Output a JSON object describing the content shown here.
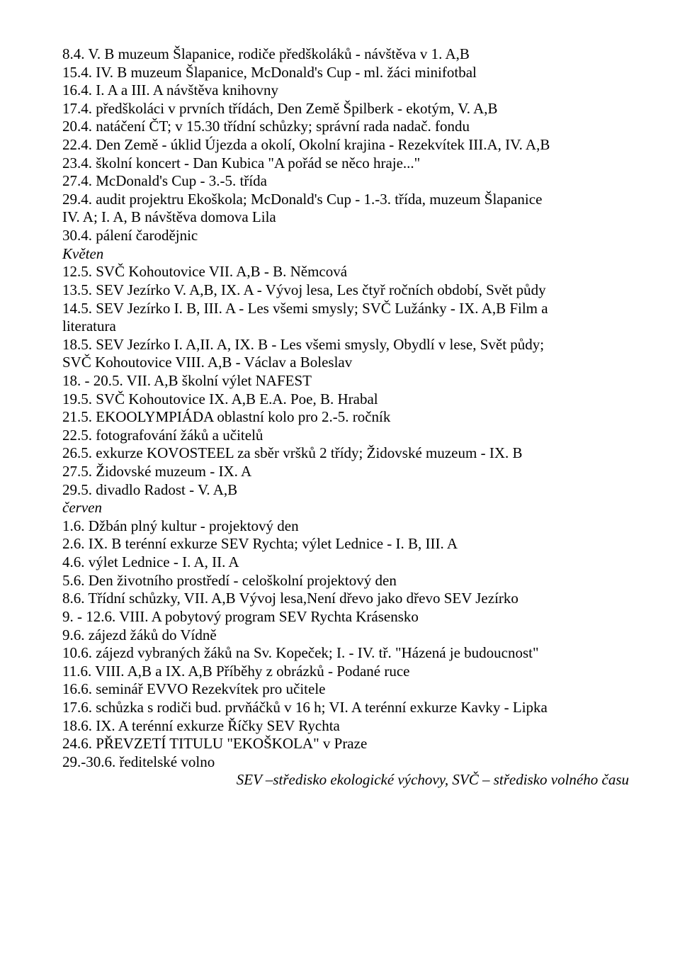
{
  "lines": [
    {
      "t": "8.4. V. B muzeum Šlapanice, rodiče předškoláků - návštěva v 1. A,B"
    },
    {
      "t": "15.4. IV. B muzeum Šlapanice, McDonald's Cup - ml. žáci minifotbal"
    },
    {
      "t": "16.4. I. A a III. A návštěva knihovny"
    },
    {
      "t": "17.4. předškoláci v prvních třídách, Den Země Špilberk - ekotým, V. A,B"
    },
    {
      "t": "20.4. natáčení ČT; v 15.30 třídní schůzky; správní rada nadač. fondu"
    },
    {
      "t": "22.4. Den Země - úklid Újezda a okolí, Okolní krajina - Rezekvítek III.A, IV. A,B"
    },
    {
      "t": "23.4. školní koncert - Dan Kubica \"A pořád se něco hraje...\""
    },
    {
      "t": "27.4. McDonald's Cup - 3.-5. třída"
    },
    {
      "t": "29.4. audit projektru Ekoškola; McDonald's Cup - 1.-3. třída, muzeum Šlapanice"
    },
    {
      "t": "IV. A; I. A, B návštěva domova Lila"
    },
    {
      "t": "30.4. pálení čarodějnic"
    },
    {
      "t": "Květen",
      "style": "italic"
    },
    {
      "t": "12.5. SVČ Kohoutovice VII. A,B - B. Němcová"
    },
    {
      "t": "13.5. SEV Jezírko V. A,B, IX. A - Vývoj lesa, Les čtyř ročních období, Svět půdy"
    },
    {
      "t": "14.5. SEV Jezírko I. B, III. A - Les všemi smysly; SVČ Lužánky - IX. A,B Film a"
    },
    {
      "t": "literatura"
    },
    {
      "t": "18.5. SEV Jezírko I. A,II. A, IX. B - Les všemi smysly, Obydlí v lese, Svět půdy;"
    },
    {
      "t": "SVČ Kohoutovice VIII. A,B - Václav a Boleslav"
    },
    {
      "t": "18. - 20.5. VII. A,B školní výlet NAFEST"
    },
    {
      "t": "19.5. SVČ Kohoutovice IX. A,B E.A. Poe, B. Hrabal"
    },
    {
      "t": "21.5. EKOOLYMPIÁDA oblastní kolo pro 2.-5. ročník"
    },
    {
      "t": "22.5. fotografování žáků a učitelů"
    },
    {
      "t": "26.5. exkurze KOVOSTEEL za sběr vršků 2 třídy; Židovské muzeum - IX. B"
    },
    {
      "t": "27.5. Židovské muzeum - IX. A"
    },
    {
      "t": "29.5. divadlo Radost - V. A,B"
    },
    {
      "t": "červen",
      "style": "italic"
    },
    {
      "t": "1.6. Džbán plný kultur - projektový den"
    },
    {
      "t": "2.6. IX. B terénní exkurze SEV Rychta; výlet Lednice - I. B, III. A"
    },
    {
      "t": "4.6. výlet Lednice - I. A, II. A"
    },
    {
      "t": "5.6. Den životního prostředí - celoškolní projektový den"
    },
    {
      "t": "8.6. Třídní schůzky, VII. A,B Vývoj lesa,Není dřevo jako dřevo SEV Jezírko"
    },
    {
      "t": "9. - 12.6. VIII. A pobytový program SEV Rychta Krásensko"
    },
    {
      "t": "9.6. zájezd žáků do Vídně"
    },
    {
      "t": "10.6. zájezd vybraných žáků na Sv. Kopeček; I. - IV. tř. \"Házená je budoucnost\""
    },
    {
      "t": "11.6. VIII. A,B a IX. A,B Příběhy z obrázků - Podané ruce"
    },
    {
      "t": "16.6. seminář EVVO Rezekvítek pro učitele"
    },
    {
      "t": "17.6. schůzka s rodiči bud. prvňáčků v 16 h; VI. A terénní exkurze Kavky - Lipka"
    },
    {
      "t": "18.6. IX. A terénní exkurze Říčky SEV Rychta"
    },
    {
      "t": "24.6. PŘEVZETÍ TITULU \"EKOŠKOLA\" v Praze"
    },
    {
      "t": "29.-30.6. ředitelské volno"
    }
  ],
  "footer": "SEV –středisko ekologické výchovy, SVČ – středisko volného času"
}
